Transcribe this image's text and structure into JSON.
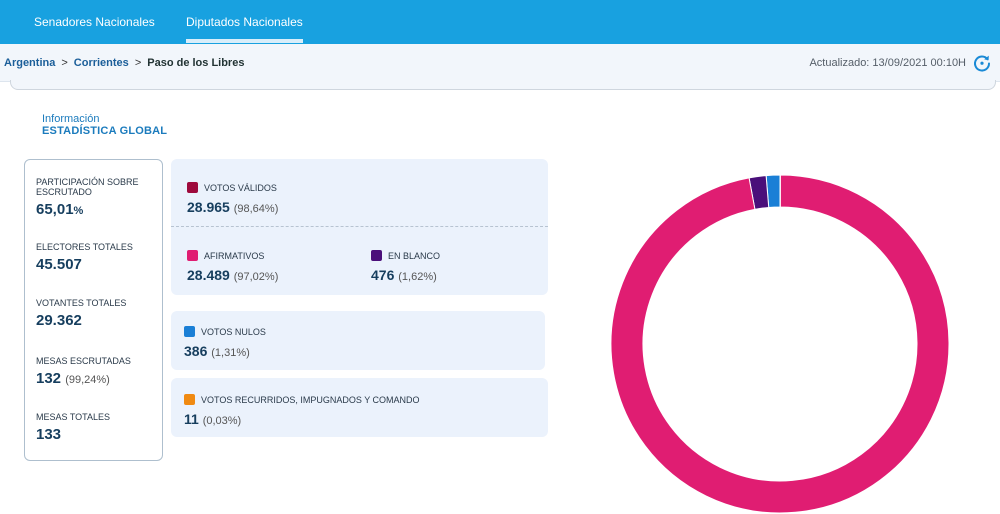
{
  "nav": {
    "tabs": [
      {
        "label": "Senadores Nacionales",
        "active": false
      },
      {
        "label": "Diputados Nacionales",
        "active": true
      }
    ]
  },
  "breadcrumb": {
    "items": [
      "Argentina",
      "Corrientes",
      "Paso de los Libres"
    ],
    "separator": ">"
  },
  "updated": {
    "text": "Actualizado: 13/09/2021 00:10H",
    "icon": "refresh-icon"
  },
  "info": {
    "label": "Información",
    "title": "ESTADÍSTICA GLOBAL"
  },
  "stats": [
    {
      "label": "PARTICIPACIÓN SOBRE ESCRUTADO",
      "value": "65,01",
      "unit": "%"
    },
    {
      "label": "ELECTORES TOTALES",
      "value": "45.507"
    },
    {
      "label": "VOTANTES TOTALES",
      "value": "29.362"
    },
    {
      "label": "MESAS ESCRUTADAS",
      "value": "132",
      "sub": "(99,24%)"
    },
    {
      "label": "MESAS TOTALES",
      "value": "133"
    }
  ],
  "votes": {
    "validos": {
      "label": "VOTOS VÁLIDOS",
      "value": "28.965",
      "pct": "(98,64%)",
      "color": "#9e0a3c"
    },
    "afirmativos": {
      "label": "AFIRMATIVOS",
      "value": "28.489",
      "pct": "(97,02%)",
      "color": "#e01d72"
    },
    "blanco": {
      "label": "EN BLANCO",
      "value": "476",
      "pct": "(1,62%)",
      "color": "#4a0f7a"
    },
    "nulos": {
      "label": "VOTOS NULOS",
      "value": "386",
      "pct": "(1,31%)",
      "color": "#1a7fd6"
    },
    "recurridos": {
      "label": "VOTOS RECURRIDOS, IMPUGNADOS Y COMANDO",
      "value": "11",
      "pct": "(0,03%)",
      "color": "#f08a12"
    }
  },
  "chart_data": {
    "type": "pie",
    "donut": true,
    "categories": [
      "Afirmativos",
      "En blanco",
      "Votos nulos",
      "Votos recurridos, impugnados y comando"
    ],
    "values": [
      97.02,
      1.62,
      1.31,
      0.03
    ],
    "colors": [
      "#e01d72",
      "#4a0f7a",
      "#1a7fd6",
      "#f08a12"
    ]
  }
}
